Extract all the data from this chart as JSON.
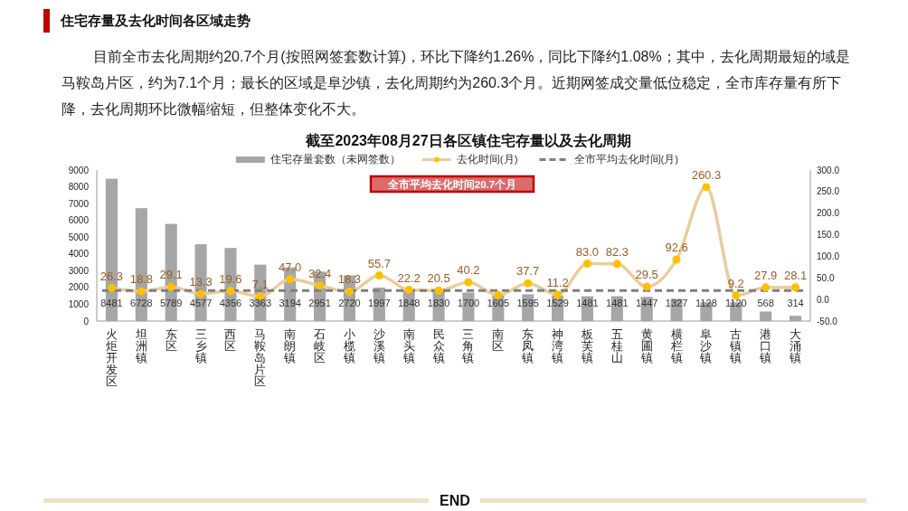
{
  "chart_data": {
    "type": "bar",
    "title": "截至2023年08月27日各区镇住宅存量以及去化周期",
    "categories": [
      "火炬开发区",
      "坦洲镇",
      "东区",
      "三乡镇",
      "西区",
      "马鞍岛片区",
      "南朗镇",
      "石岐区",
      "小榄镇",
      "沙溪镇",
      "南头镇",
      "民众镇",
      "三角镇",
      "南区",
      "东凤镇",
      "神湾镇",
      "板芙镇",
      "五桂山",
      "黄圃镇",
      "横栏镇",
      "阜沙镇",
      "古镇镇",
      "港口镇",
      "大涌镇"
    ],
    "series": [
      {
        "name": "住宅存量套数（未网签数）",
        "color": "#a6a6a6",
        "values": [
          8481,
          6728,
          5789,
          4577,
          4356,
          3363,
          3194,
          2951,
          2720,
          1997,
          1848,
          1830,
          1700,
          1605,
          1595,
          1529,
          1481,
          1481,
          1447,
          1327,
          1128,
          1120,
          568,
          314
        ],
        "value_labels": [
          "8481",
          "6728",
          "5789",
          "4577",
          "4356",
          "3363",
          "3194",
          "2951",
          "2720",
          "1997",
          "1848",
          "1830",
          "1700",
          "1605",
          "1595",
          "1529",
          "1481",
          "1481",
          "1447",
          "1327",
          "1128",
          "1120",
          "568",
          "314"
        ]
      },
      {
        "type": "line",
        "name": "去化时间(月)",
        "axis": "y2",
        "color": "#eacd9c",
        "colors": [
          "#ffc000",
          "#ffc000",
          "#ffc000",
          "#ffc000",
          "#ffc000",
          "#ffc000",
          "#ffc000",
          "#ffc000",
          "#ffc000",
          "#ffc000",
          "#ffc000",
          "#ffc000",
          "#ffc000",
          "#ffc000",
          "#ffc000",
          "#ffc000",
          "#ffc000",
          "#ffc000",
          "#ffc000",
          "#ffc000",
          "#ffc000",
          "#ffc000",
          "#ffc000",
          "#ffc000"
        ],
        "marker": "circle",
        "values": [
          26.3,
          18.8,
          29.1,
          13.3,
          19.6,
          7.1,
          47.0,
          32.4,
          18.3,
          55.7,
          22.2,
          20.5,
          40.2,
          10,
          37.7,
          11.2,
          83.0,
          82.3,
          29.5,
          92.6,
          260.3,
          9.2,
          27.9,
          28.1
        ],
        "value_labels": [
          "26.3",
          "18.8",
          "29.1",
          "13.3",
          "19.6",
          "7.1",
          "47.0",
          "32.4",
          "18.3",
          "55.7",
          "22.2",
          "20.5",
          "40.2",
          null,
          "37.7",
          "11.2",
          "83.0",
          "82.3",
          "29.5",
          "92.6",
          "260.3",
          "9.2",
          "27.9",
          "28.1"
        ]
      }
    ],
    "ylim": [
      0,
      9000
    ],
    "yticks": [
      0,
      1000,
      2000,
      3000,
      4000,
      5000,
      6000,
      7000,
      8000,
      9000
    ],
    "y2lim": [
      -50,
      300
    ],
    "y2ticks": [
      {
        "value": -50,
        "label": "-50.0"
      },
      {
        "value": 0,
        "label": "0.0"
      },
      {
        "value": 50,
        "label": "50.0"
      },
      {
        "value": 100,
        "label": "100.0"
      },
      {
        "value": 150,
        "label": "150.0"
      },
      {
        "value": 200,
        "label": "200.0"
      },
      {
        "value": 250,
        "label": "250.0"
      },
      {
        "value": 300,
        "label": "300.0"
      }
    ],
    "ref_lines": [
      {
        "axis": "y2",
        "value": 20.7,
        "label": "全市平均去化时间(月)",
        "color": "#7f7f7f",
        "line_style": "dashed"
      }
    ],
    "legend": "top",
    "annotations": [
      "住宅存量及去化时间各区域走势",
      "目前全市去化周期约20.7个月(按照网签套数计算)，环比下降约1.26%，同比下降约1.08%；其中，去化周期最短的域是马鞍岛片区，约为7.1个月；最长的区域是阜沙镇，去化周期约为260.3个月。近期网签成交量低位稳定，全市库存量有所下降，去化周期环比微幅缩短，但整体变化不大。",
      "全市平均去化时间20.7个月",
      "END"
    ]
  }
}
